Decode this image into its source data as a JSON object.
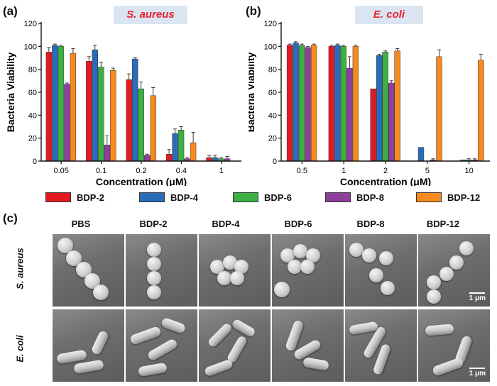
{
  "panels": {
    "a": {
      "letter": "(a)",
      "title": "S. aureus"
    },
    "b": {
      "letter": "(b)",
      "title": "E. coli"
    },
    "c": {
      "letter": "(c)"
    }
  },
  "legend": [
    {
      "name": "BDP-2",
      "color": "#e31a22"
    },
    {
      "name": "BDP-4",
      "color": "#2b6cb8"
    },
    {
      "name": "BDP-6",
      "color": "#3cb043"
    },
    {
      "name": "BDP-8",
      "color": "#8e3f9e"
    },
    {
      "name": "BDP-12",
      "color": "#f7891f"
    }
  ],
  "chart_data": [
    {
      "type": "bar",
      "panel": "(a)",
      "title": "S. aureus",
      "xlabel": "Concentration (μM)",
      "ylabel": "Bacteria Viability",
      "categories": [
        "0.05",
        "0.1",
        "0.2",
        "0.4",
        "1"
      ],
      "ylim": [
        0,
        120
      ],
      "yticks": [
        0,
        20,
        40,
        60,
        80,
        100,
        120
      ],
      "series": [
        {
          "name": "BDP-2",
          "values": [
            95,
            87,
            71,
            6,
            3
          ],
          "errors": [
            4,
            4,
            5,
            4,
            2
          ]
        },
        {
          "name": "BDP-4",
          "values": [
            101,
            97,
            89,
            24,
            3
          ],
          "errors": [
            1,
            4,
            1,
            4,
            2
          ]
        },
        {
          "name": "BDP-6",
          "values": [
            100,
            82,
            63,
            27,
            2
          ],
          "errors": [
            1,
            4,
            6,
            3,
            1
          ]
        },
        {
          "name": "BDP-8",
          "values": [
            67,
            14,
            5,
            2,
            2
          ],
          "errors": [
            1,
            8,
            1,
            1,
            2
          ]
        },
        {
          "name": "BDP-12",
          "values": [
            94,
            79,
            57,
            16,
            0
          ],
          "errors": [
            4,
            2,
            7,
            9,
            0
          ]
        }
      ]
    },
    {
      "type": "bar",
      "panel": "(b)",
      "title": "E. coli",
      "xlabel": "Concentration (μM)",
      "ylabel": "Bacteria Viability",
      "categories": [
        "0.5",
        "1",
        "2",
        "5",
        "10"
      ],
      "ylim": [
        0,
        120
      ],
      "yticks": [
        0,
        20,
        40,
        60,
        80,
        100,
        120
      ],
      "series": [
        {
          "name": "BDP-2",
          "values": [
            101,
            100,
            63,
            0,
            0
          ],
          "errors": [
            1,
            1,
            0,
            0,
            0
          ]
        },
        {
          "name": "BDP-4",
          "values": [
            103,
            101,
            92,
            12,
            1
          ],
          "errors": [
            1,
            1,
            1,
            0,
            0
          ]
        },
        {
          "name": "BDP-6",
          "values": [
            101,
            100,
            95,
            0,
            1
          ],
          "errors": [
            1,
            1,
            1,
            0,
            1
          ]
        },
        {
          "name": "BDP-8",
          "values": [
            99,
            81,
            68,
            1,
            1
          ],
          "errors": [
            1,
            10,
            2,
            1,
            1
          ]
        },
        {
          "name": "BDP-12",
          "values": [
            101,
            100,
            96,
            91,
            88
          ],
          "errors": [
            1,
            1,
            2,
            6,
            5
          ]
        }
      ]
    }
  ],
  "sem": {
    "columns": [
      "PBS",
      "BDP-2",
      "BDP-4",
      "BDP-6",
      "BDP-8",
      "BDP-12"
    ],
    "rows": [
      "S. aureus",
      "E. coli"
    ],
    "scale_label": "1 μm"
  }
}
